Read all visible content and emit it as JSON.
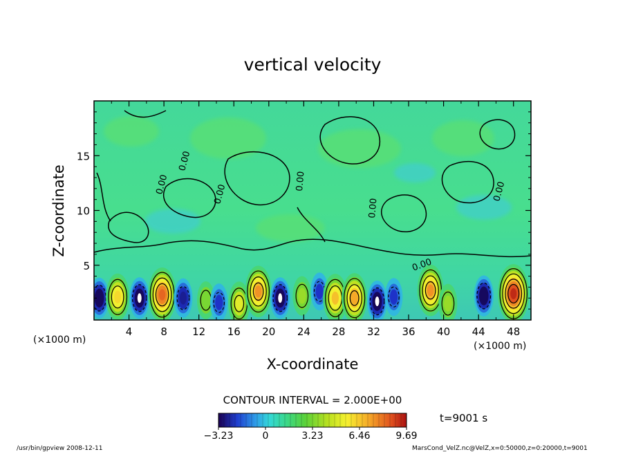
{
  "chart_data": {
    "type": "heatmap",
    "title": "vertical velocity",
    "xlabel": "X-coordinate",
    "ylabel": "Z-coordinate",
    "x_unit": "(×1000 m)",
    "y_unit": "(×1000 m)",
    "xlim": [
      0,
      50
    ],
    "ylim": [
      0,
      20
    ],
    "x_ticks": [
      4,
      8,
      12,
      16,
      20,
      24,
      28,
      32,
      36,
      40,
      44,
      48
    ],
    "y_ticks": [
      5,
      10,
      15
    ],
    "contour_interval_text": "CONTOUR INTERVAL = 2.000E+00",
    "contour_label": "0.00",
    "time_label": "t=9001 s",
    "colorbar": {
      "range": [
        -3.23,
        9.69
      ],
      "tick_values": [
        -3.23,
        0,
        3.23,
        6.46,
        9.69
      ],
      "tick_labels": [
        "−3.23",
        "0",
        "3.23",
        "6.46",
        "9.69"
      ]
    },
    "cells_near_surface": [
      {
        "x": 0.6,
        "z": 2.0,
        "w": -3.0
      },
      {
        "x": 2.7,
        "z": 2.1,
        "w": 5.0
      },
      {
        "x": 5.2,
        "z": 2.0,
        "w": -3.2
      },
      {
        "x": 7.8,
        "z": 2.3,
        "w": 7.5
      },
      {
        "x": 10.2,
        "z": 2.0,
        "w": -2.5
      },
      {
        "x": 12.8,
        "z": 1.8,
        "w": 2.0
      },
      {
        "x": 14.3,
        "z": 1.6,
        "w": -2.0
      },
      {
        "x": 16.6,
        "z": 1.5,
        "w": 4.0
      },
      {
        "x": 18.8,
        "z": 2.6,
        "w": 6.5
      },
      {
        "x": 21.3,
        "z": 2.0,
        "w": -3.2
      },
      {
        "x": 23.8,
        "z": 2.2,
        "w": 2.5
      },
      {
        "x": 25.8,
        "z": 2.6,
        "w": -2.0
      },
      {
        "x": 27.6,
        "z": 2.0,
        "w": 5.5
      },
      {
        "x": 29.8,
        "z": 2.0,
        "w": 6.0
      },
      {
        "x": 32.4,
        "z": 1.7,
        "w": -3.2
      },
      {
        "x": 34.3,
        "z": 2.1,
        "w": -2.0
      },
      {
        "x": 38.5,
        "z": 2.7,
        "w": 6.5
      },
      {
        "x": 40.5,
        "z": 1.5,
        "w": 2.5
      },
      {
        "x": 44.6,
        "z": 2.2,
        "w": -3.0
      },
      {
        "x": 48.0,
        "z": 2.4,
        "w": 9.0
      }
    ]
  },
  "footer": {
    "left": "/usr/bin/gpview   2008-12-11",
    "right": "MarsCond_VelZ.nc@VelZ,x=0:50000,z=0:20000,t=9001"
  }
}
